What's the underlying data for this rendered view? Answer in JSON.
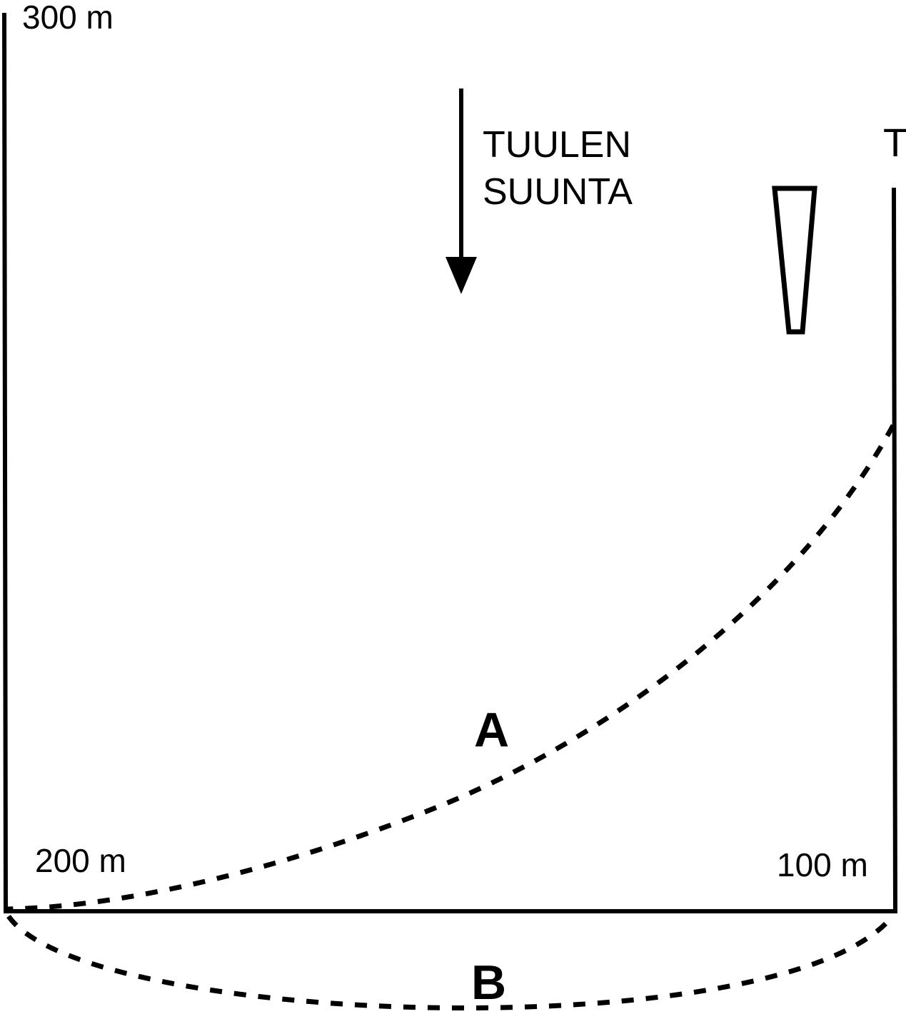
{
  "labels": {
    "corner_top_left": "300 m",
    "corner_bottom_left": "200 m",
    "corner_bottom_right": "100 m",
    "wind_line1": "TUULEN",
    "wind_line2": "SUUNTA",
    "target_marker": "T",
    "route_a": "A",
    "route_b": "B"
  },
  "colors": {
    "ink": "#000000",
    "background": "#ffffff"
  },
  "icons": {
    "wind_arrow": "down-arrow-icon",
    "windsock": "windsock-icon"
  }
}
